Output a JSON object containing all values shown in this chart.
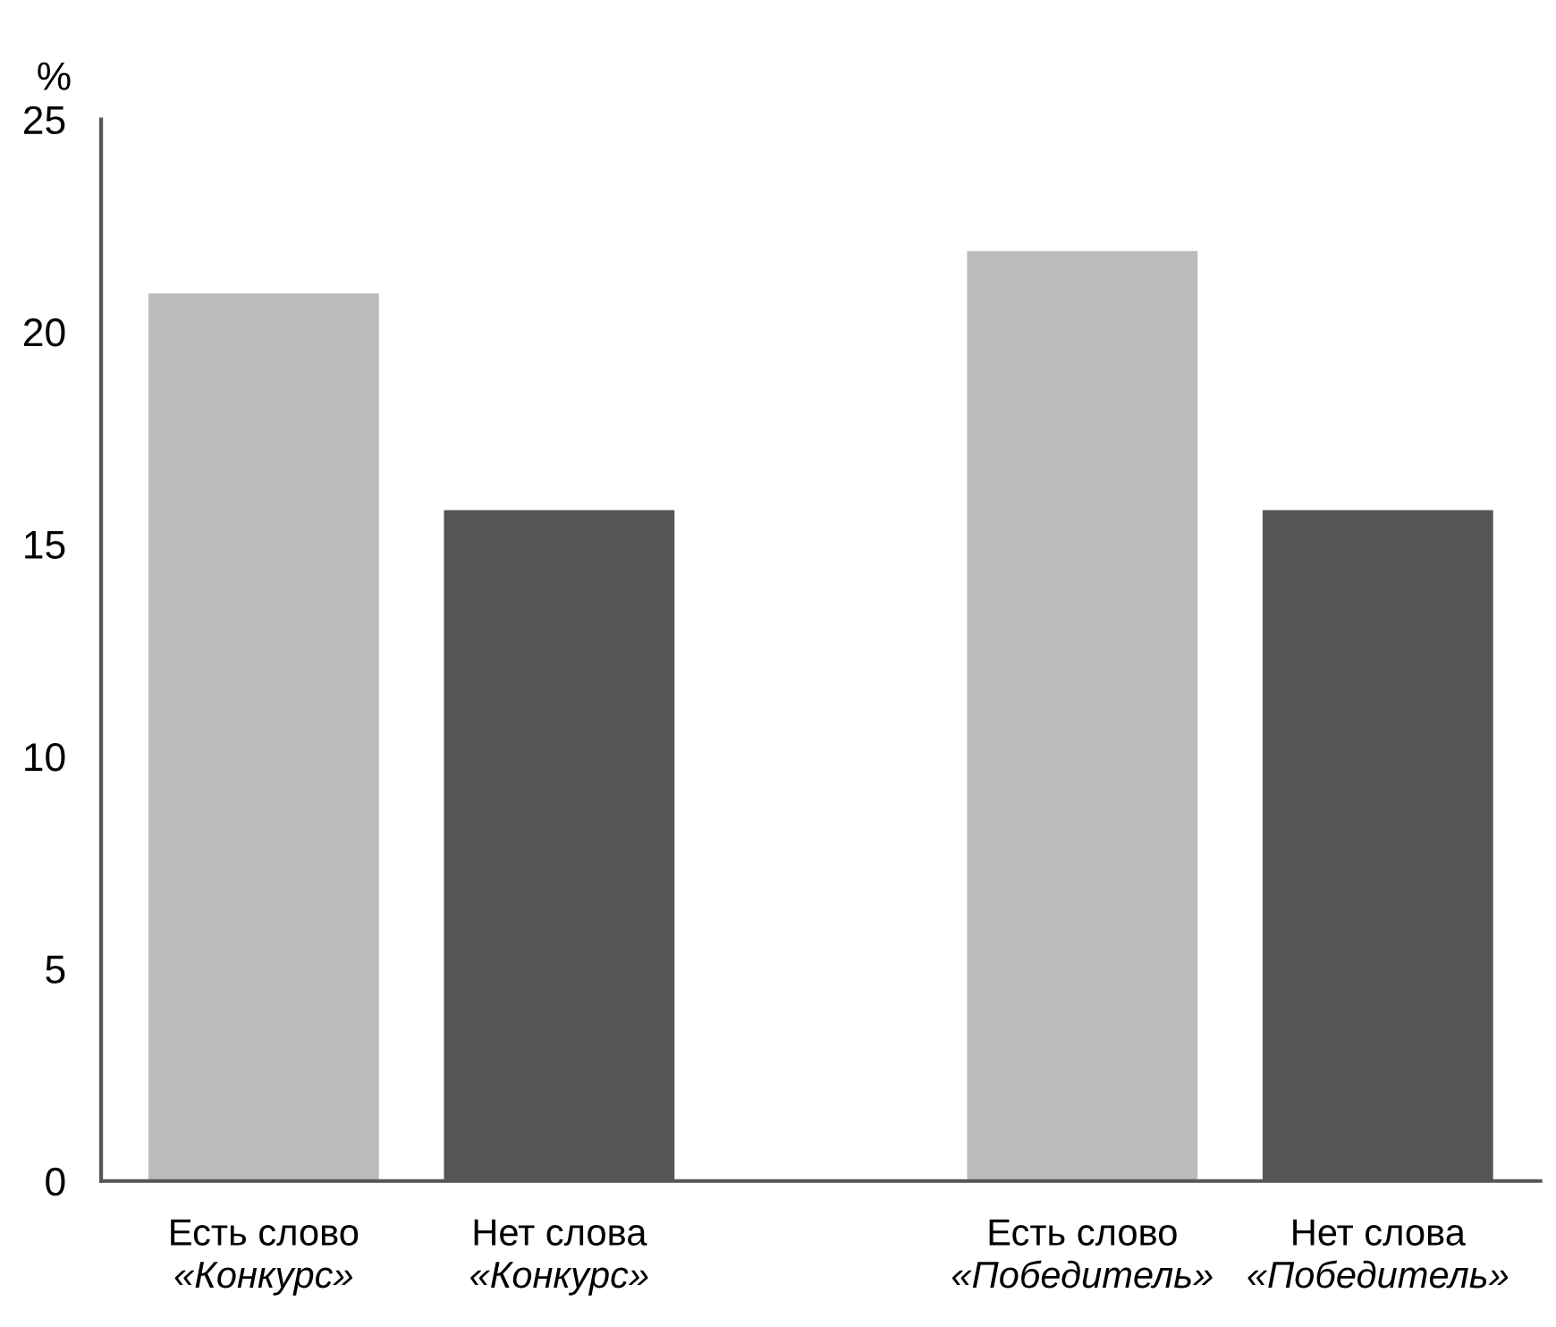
{
  "chart_data": {
    "type": "bar",
    "ylabel": "%",
    "categories": [
      "Есть слово\n«Конкурс»",
      "Нет слова\n«Конкурс»",
      "Есть слово\n«Победитель»",
      "Нет слова\n«Победитель»"
    ],
    "values": [
      20.9,
      15.8,
      21.9,
      15.8
    ],
    "colors": [
      "#bbbbbb",
      "#555555",
      "#bbbbbb",
      "#555555"
    ],
    "ylim": [
      0,
      25
    ],
    "yticks": [
      0,
      5,
      10,
      15,
      20,
      25
    ],
    "grid": false,
    "legend": false
  }
}
